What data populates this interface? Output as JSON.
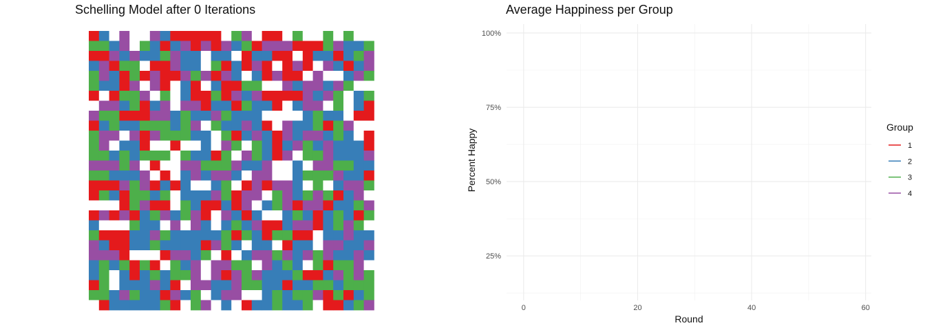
{
  "chart_data": [
    {
      "type": "heatmap",
      "title": "Schelling Model after 0 Iterations",
      "grid_size": [
        28,
        28
      ],
      "empty_color": "#ffffff",
      "group_colors": {
        "1": "#e41a1c",
        "2": "#377eb8",
        "3": "#4daf4a",
        "4": "#984ea3"
      },
      "cells": [
        "1204004211111034011030030300",
        "3324032124141423144411134223",
        "1142422342202201221101221234",
        "2413301142203121410141042124",
        "3421314114341420214110400243",
        "3221404102102113300424424300",
        "1013340302113142411114243023",
        "0442312404412213221024403021",
        "4331114423224322200002322011",
        "1232233323403224210422313400",
        "3440414333220312421424423201",
        "3402210010020430321243242221",
        "3323233303221304321403342224",
        "4443401004433342240020443322",
        "3322240102424420440023334221",
        "1114341212002301414420302443",
        "1321332302224314403423431240",
        "0001341103211214023414412234",
        "1414123423410421200232123213",
        "2000322040420232411244123430",
        "3111224322222313213311022422",
        "4211223222214320220122044224",
        "4441000144230102443424342242",
        "2323131032404433042320313340",
        "2302123233404143422231124343",
        "1302224210442243322122332333",
        "3324322142302440023233413123",
        "0122222310340201223223011234"
      ]
    },
    {
      "type": "line",
      "title": "Average Happiness per Group",
      "xlabel": "Round",
      "ylabel": "Percent Happy",
      "xlim": [
        -3,
        61
      ],
      "ylim": [
        0.1,
        1.03
      ],
      "x_ticks": [
        "0",
        "20",
        "40",
        "60"
      ],
      "x_tick_values": [
        0,
        20,
        40,
        60
      ],
      "y_ticks": [
        "25%",
        "50%",
        "75%",
        "100%"
      ],
      "y_tick_values": [
        0.25,
        0.5,
        0.75,
        1.0
      ],
      "grid": true,
      "legend": {
        "title": "Group",
        "position": "right",
        "items": [
          {
            "label": "1",
            "color": "#e41a1c"
          },
          {
            "label": "2",
            "color": "#377eb8"
          },
          {
            "label": "3",
            "color": "#4daf4a"
          },
          {
            "label": "4",
            "color": "#984ea3"
          }
        ]
      },
      "series": [
        {
          "name": "1",
          "color": "#e41a1c",
          "x": [],
          "y": []
        },
        {
          "name": "2",
          "color": "#377eb8",
          "x": [],
          "y": []
        },
        {
          "name": "3",
          "color": "#4daf4a",
          "x": [],
          "y": []
        },
        {
          "name": "4",
          "color": "#984ea3",
          "x": [],
          "y": []
        }
      ]
    }
  ]
}
